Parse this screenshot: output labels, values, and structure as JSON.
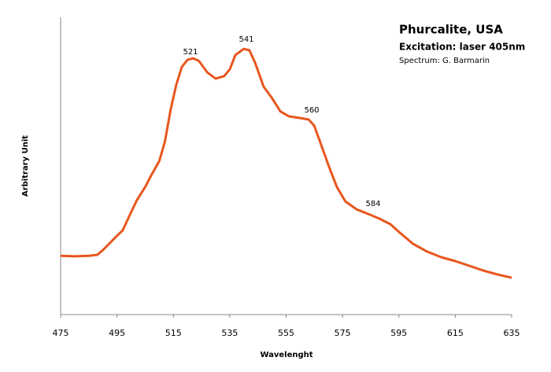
{
  "chart_data": {
    "type": "line",
    "title": "Phurcalite, USA",
    "subtitle": "Excitation: laser 405nm",
    "credit": "Spectrum: G. Barmarin",
    "xlabel": "Wavelenght",
    "ylabel": "Arbitrary Unit",
    "annotations": [
      "521",
      "541",
      "560",
      "584"
    ],
    "x": [
      475,
      480,
      485,
      488,
      490,
      495,
      497,
      500,
      502,
      505,
      507,
      510,
      512,
      514,
      516,
      518,
      520,
      522,
      524,
      527,
      530,
      533,
      535,
      537,
      540,
      542,
      544,
      547,
      550,
      553,
      556,
      560,
      563,
      565,
      567,
      570,
      573,
      576,
      580,
      584,
      588,
      592,
      595,
      600,
      605,
      610,
      615,
      620,
      625,
      630,
      635
    ],
    "series": [
      {
        "name": "Phurcalite",
        "color": "#e8561e",
        "values": [
          19.8,
          19.6,
          19.8,
          20.1,
          21.7,
          26.5,
          28.3,
          34.4,
          38.4,
          42.9,
          46.6,
          51.6,
          58.2,
          68.8,
          77.2,
          83.3,
          85.7,
          86.2,
          85.4,
          81.5,
          79.4,
          80.2,
          82.5,
          87.3,
          89.4,
          88.9,
          84.7,
          76.7,
          72.8,
          68.3,
          66.7,
          66.1,
          65.6,
          63.5,
          58.2,
          50.3,
          42.9,
          38.1,
          35.4,
          33.9,
          32.3,
          30.4,
          27.8,
          23.8,
          21.2,
          19.3,
          18.0,
          16.4,
          14.8,
          13.5,
          12.4
        ]
      }
    ],
    "xlim": [
      475,
      635
    ],
    "xticks": [
      475,
      495,
      515,
      535,
      555,
      575,
      595,
      615,
      635
    ],
    "ylim": [
      0,
      100
    ],
    "grid": false
  }
}
